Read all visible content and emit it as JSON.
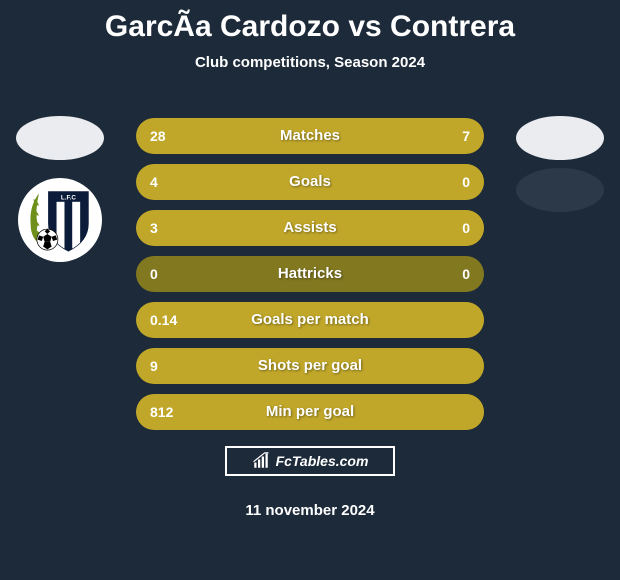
{
  "title": "GarcÃ­a Cardozo vs Contrera",
  "subtitle": "Club competitions, Season 2024",
  "date": "11 november 2024",
  "brand": "FcTables.com",
  "colors": {
    "bg": "#1c2a3a",
    "bar_base": "#827820",
    "bar_fill": "#c0a72a",
    "white": "#ffffff",
    "avatar_bg": "#eaecef",
    "clubspot_right": "#2b3948"
  },
  "club_left": {
    "shield_stripes": [
      "#0a1c3a",
      "#ffffff",
      "#0a1c3a",
      "#ffffff",
      "#0a1c3a"
    ],
    "laurel": "#6e8f1a"
  },
  "rows": [
    {
      "label": "Matches",
      "left": "28",
      "right": "7",
      "left_pct": 78,
      "right_pct": 22
    },
    {
      "label": "Goals",
      "left": "4",
      "right": "0",
      "left_pct": 100,
      "right_pct": 0
    },
    {
      "label": "Assists",
      "left": "3",
      "right": "0",
      "left_pct": 100,
      "right_pct": 0
    },
    {
      "label": "Hattricks",
      "left": "0",
      "right": "0",
      "left_pct": 0,
      "right_pct": 0
    },
    {
      "label": "Goals per match",
      "left": "0.14",
      "right": "",
      "left_pct": 100,
      "right_pct": 0
    },
    {
      "label": "Shots per goal",
      "left": "9",
      "right": "",
      "left_pct": 100,
      "right_pct": 0
    },
    {
      "label": "Min per goal",
      "left": "812",
      "right": "",
      "left_pct": 100,
      "right_pct": 0
    }
  ]
}
